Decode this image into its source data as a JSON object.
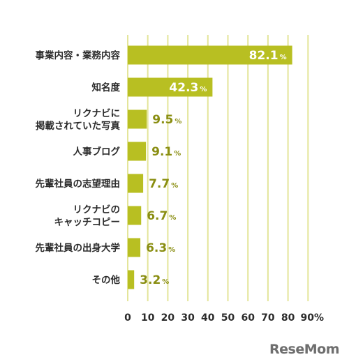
{
  "chart_data": {
    "type": "bar",
    "orientation": "horizontal",
    "categories": [
      [
        "事業内容・業務内容"
      ],
      [
        "知名度"
      ],
      [
        "リクナビに",
        "掲載されていた写真"
      ],
      [
        "人事ブログ"
      ],
      [
        "先輩社員の志望理由"
      ],
      [
        "リクナビの",
        "キャッチコピー"
      ],
      [
        "先輩社員の出身大学"
      ],
      [
        "その他"
      ]
    ],
    "values": [
      82.1,
      42.3,
      9.5,
      9.1,
      7.7,
      6.7,
      6.3,
      3.2
    ],
    "value_labels": [
      "82.1",
      "42.3",
      "9.5",
      "9.1",
      "7.7",
      "6.7",
      "6.3",
      "3.2"
    ],
    "value_suffix": "%",
    "xlim": [
      0,
      90
    ],
    "x_ticks": [
      "0",
      "10",
      "20",
      "30",
      "40",
      "50",
      "60",
      "70",
      "80",
      "90%"
    ],
    "grid": true,
    "colors": {
      "bar": "#b8bf22",
      "grid": "#e4e59a",
      "label_outside": "#8a8e12",
      "label_inside": "#ffffff"
    }
  },
  "watermark": "ReseMom"
}
